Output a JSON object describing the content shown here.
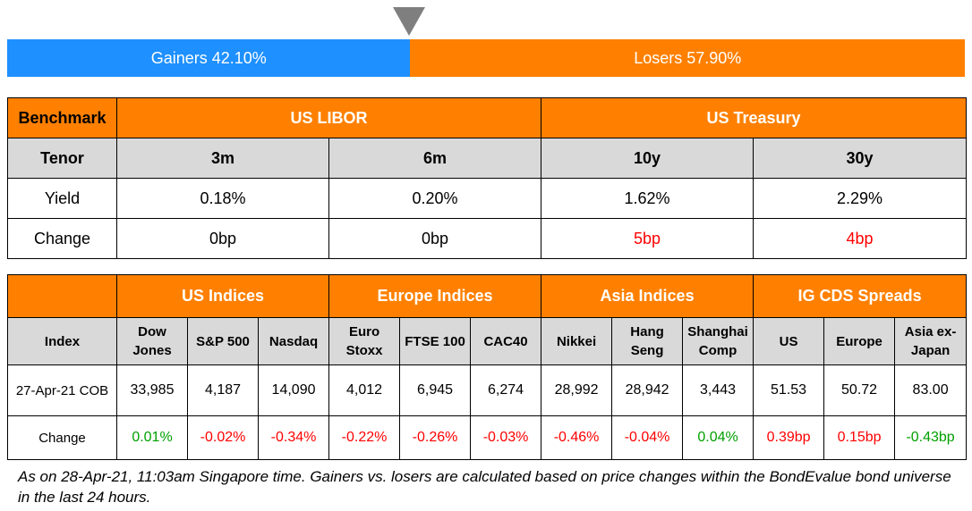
{
  "gainers_losers": {
    "gainers_label": "Gainers 42.10%",
    "losers_label": "Losers 57.90%",
    "gainers_pct": 42.1,
    "losers_pct": 57.9,
    "gainers_color": "#1e90ff",
    "losers_color": "#ff8000"
  },
  "rates_table": {
    "header": {
      "benchmark": "Benchmark",
      "us_libor": "US LIBOR",
      "us_treasury": "US Treasury"
    },
    "tenor_row": {
      "label": "Tenor",
      "t1": "3m",
      "t2": "6m",
      "t3": "10y",
      "t4": "30y"
    },
    "yield_row": {
      "label": "Yield",
      "t1": "0.18%",
      "t2": "0.20%",
      "t3": "1.62%",
      "t4": "2.29%"
    },
    "change_row": {
      "label": "Change",
      "t1": "0bp",
      "t2": "0bp",
      "t3": "5bp",
      "t4": "4bp"
    }
  },
  "indices_table": {
    "groups": {
      "us": "US Indices",
      "europe": "Europe Indices",
      "asia": "Asia Indices",
      "cds": "IG CDS Spreads"
    },
    "columns": {
      "index": "Index",
      "dow_l1": "Dow",
      "dow_l2": "Jones",
      "sp500": "S&P 500",
      "nasdaq": "Nasdaq",
      "euro_l1": "Euro",
      "euro_l2": "Stoxx",
      "ftse": "FTSE 100",
      "cac": "CAC40",
      "nikkei": "Nikkei",
      "hang_l1": "Hang",
      "hang_l2": "Seng",
      "shang_l1": "Shanghai",
      "shang_l2": "Comp",
      "cds_us": "US",
      "cds_europe": "Europe",
      "asia_l1": "Asia ex-",
      "asia_l2": "Japan"
    },
    "values": {
      "label": "27-Apr-21 COB",
      "dow": "33,985",
      "sp500": "4,187",
      "nasdaq": "14,090",
      "euro": "4,012",
      "ftse": "6,945",
      "cac": "6,274",
      "nikkei": "28,992",
      "hang": "28,942",
      "shang": "3,443",
      "cds_us": "51.53",
      "cds_europe": "50.72",
      "cds_asia": "83.00"
    },
    "changes": {
      "label": "Change",
      "dow": "0.01%",
      "sp500": "-0.02%",
      "nasdaq": "-0.34%",
      "euro": "-0.22%",
      "ftse": "-0.26%",
      "cac": "-0.03%",
      "nikkei": "-0.46%",
      "hang": "-0.04%",
      "shang": "0.04%",
      "cds_us": "0.39bp",
      "cds_europe": "0.15bp",
      "cds_asia": "-0.43bp"
    }
  },
  "footnote": "As on 28-Apr-21, 11:03am Singapore time. Gainers vs. losers are calculated based on price changes within the BondEvalue bond universe in the last 24 hours."
}
